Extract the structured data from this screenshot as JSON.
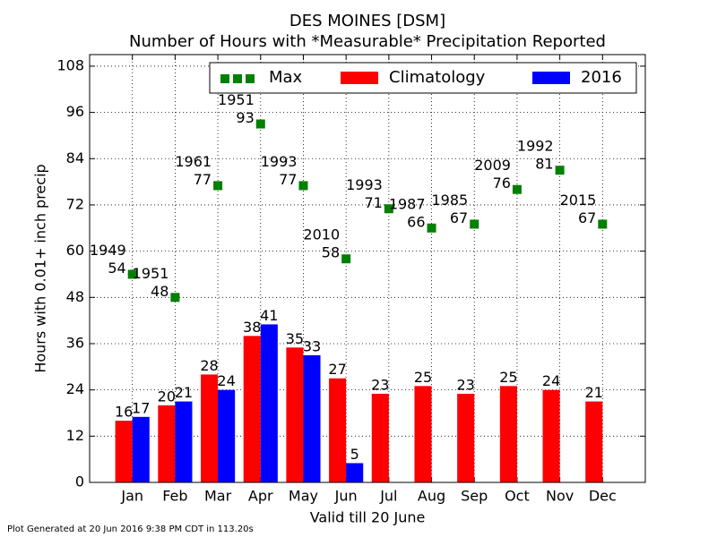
{
  "chart_data": {
    "type": "bar",
    "title": "DES MOINES [DSM]",
    "subtitle": "Number of Hours with *Measurable* Precipitation Reported",
    "ylabel": "Hours with 0.01+ inch precip",
    "xlabel": "Valid till 20 June",
    "footer": "Plot Generated at 20 Jun 2016 9:38 PM CDT in 113.20s",
    "categories": [
      "Jan",
      "Feb",
      "Mar",
      "Apr",
      "May",
      "Jun",
      "Jul",
      "Aug",
      "Sep",
      "Oct",
      "Nov",
      "Dec"
    ],
    "series": [
      {
        "name": "Max",
        "color": "#008000",
        "kind": "marker",
        "values": [
          54,
          48,
          77,
          93,
          77,
          58,
          71,
          66,
          67,
          76,
          81,
          67
        ],
        "years": [
          "1949",
          "1951",
          "1961",
          "1951",
          "1993",
          "2010",
          "1993",
          "1987",
          "1985",
          "2009",
          "1992",
          "2015"
        ]
      },
      {
        "name": "Climatology",
        "color": "#ff0000",
        "kind": "bar",
        "values": [
          16,
          20,
          28,
          38,
          35,
          27,
          23,
          25,
          23,
          25,
          24,
          21
        ]
      },
      {
        "name": "2016",
        "color": "#0000ff",
        "kind": "bar",
        "values": [
          17,
          21,
          24,
          41,
          33,
          5,
          null,
          null,
          null,
          null,
          null,
          null
        ]
      }
    ],
    "ylim": [
      0,
      111
    ],
    "yticks": [
      0,
      12,
      24,
      36,
      48,
      60,
      72,
      84,
      96,
      108
    ],
    "grid": true,
    "legend": "upper right"
  }
}
